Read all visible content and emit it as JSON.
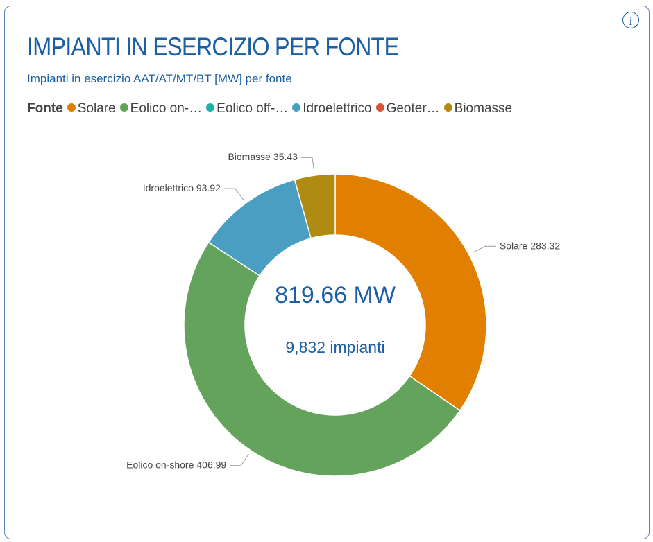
{
  "chart_data": {
    "type": "donut",
    "title": "IMPIANTI IN ESERCIZIO PER FONTE",
    "subtitle": "Impianti in esercizio AAT/AT/MT/BT [MW] per fonte",
    "legend_title": "Fonte",
    "legend": [
      "Solare",
      "Eolico on-…",
      "Eolico off-…",
      "Idroelettrico",
      "Geoter…",
      "Biomasse"
    ],
    "categories": [
      "Solare",
      "Eolico on-shore",
      null,
      "Idroelettrico",
      null,
      "Biomasse"
    ],
    "values": [
      283.32,
      406.99,
      0,
      93.92,
      0,
      35.43
    ],
    "colors": [
      "#e07f00",
      "#63a35c",
      "#1bb3a6",
      "#4a9ec2",
      "#d0553a",
      "#b08b12"
    ],
    "center_value": "819.66 MW",
    "center_subtitle": "9,832 impianti"
  }
}
